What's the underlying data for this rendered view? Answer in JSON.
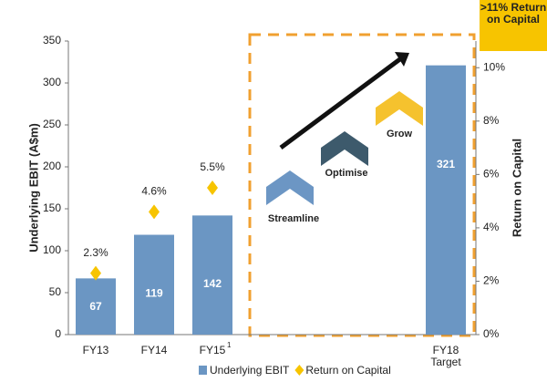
{
  "chart_data": {
    "type": "bar",
    "categories": [
      "FY13",
      "FY14",
      "FY15",
      null,
      null,
      null,
      "FY18 Target"
    ],
    "series": [
      {
        "name": "Underlying EBIT",
        "color": "#6b96c3",
        "values": [
          67,
          119,
          142,
          null,
          null,
          null,
          321
        ]
      },
      {
        "name": "Return on Capital",
        "color": "#f7c400",
        "axis": "y2",
        "values": [
          2.3,
          4.6,
          5.5,
          null,
          null,
          null,
          null
        ],
        "value_labels": [
          "2.3%",
          "4.6%",
          "5.5%",
          null,
          null,
          null,
          null
        ]
      }
    ],
    "y_label": "Underlying EBIT (A$m)",
    "y2_label": "Return on Capital",
    "ylim": [
      0,
      350
    ],
    "yticks": [
      0,
      50,
      100,
      150,
      200,
      250,
      300,
      350
    ],
    "y2lim": [
      0,
      11
    ],
    "y2ticks": [
      {
        "value": 0,
        "label": "0%"
      },
      {
        "value": 2,
        "label": "2%"
      },
      {
        "value": 4,
        "label": "4%"
      },
      {
        "value": 6,
        "label": "6%"
      },
      {
        "value": 8,
        "label": "8%"
      },
      {
        "value": 10,
        "label": "10%"
      }
    ],
    "footnote": "1",
    "steps": [
      "Streamline",
      "Optimise",
      "Grow"
    ],
    "callout": ">11% Return on Capital",
    "legend": "bottom"
  }
}
